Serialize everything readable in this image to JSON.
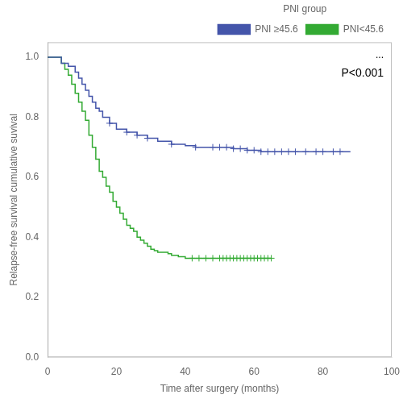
{
  "chart_data": {
    "type": "line",
    "xlabel": "Time after surgery (months)",
    "ylabel": "Relapse-free survival cumulative suvival",
    "xlim": [
      0,
      100
    ],
    "ylim": [
      0.0,
      1.05
    ],
    "xticks": [
      0,
      20,
      40,
      60,
      80,
      100
    ],
    "yticks": [
      {
        "value": 0,
        "label": "0.0"
      },
      0.2,
      0.4,
      0.6,
      0.8,
      {
        "value": 1,
        "label": "1.0"
      }
    ],
    "grid": false,
    "legend": "upper right",
    "legend_title": "PNI group",
    "annotations": [
      "...",
      "P<0.001"
    ],
    "series": [
      {
        "name": "PNI ≥45.6",
        "color": "#4455aa",
        "x": [
          0,
          2,
          4,
          6,
          8,
          9,
          10,
          11,
          12,
          13,
          14,
          15,
          16,
          18,
          20,
          23,
          26,
          29,
          32,
          36,
          40,
          43,
          46,
          48,
          50,
          52,
          54,
          56,
          58,
          60,
          62,
          64,
          66,
          68,
          70,
          72,
          75,
          78,
          80,
          83,
          85,
          88
        ],
        "values": [
          1.0,
          1.0,
          0.98,
          0.97,
          0.95,
          0.93,
          0.91,
          0.89,
          0.87,
          0.85,
          0.83,
          0.82,
          0.8,
          0.78,
          0.76,
          0.75,
          0.74,
          0.73,
          0.72,
          0.71,
          0.705,
          0.7,
          0.7,
          0.7,
          0.7,
          0.7,
          0.695,
          0.695,
          0.69,
          0.69,
          0.685,
          0.685,
          0.685,
          0.685,
          0.685,
          0.685,
          0.685,
          0.685,
          0.685,
          0.685,
          0.685,
          0.685
        ],
        "censored_x": [
          18,
          23,
          26,
          29,
          36,
          43,
          48,
          50,
          52,
          54,
          56,
          58,
          60,
          62,
          64,
          66,
          68,
          70,
          72,
          75,
          78,
          80,
          83,
          85
        ],
        "censored_y": [
          0.78,
          0.75,
          0.74,
          0.73,
          0.71,
          0.7,
          0.7,
          0.7,
          0.7,
          0.695,
          0.695,
          0.69,
          0.69,
          0.685,
          0.685,
          0.685,
          0.685,
          0.685,
          0.685,
          0.685,
          0.685,
          0.685,
          0.685,
          0.685
        ]
      },
      {
        "name": "PNI<45.6",
        "color": "#33aa33",
        "x": [
          0,
          2,
          4,
          5,
          6,
          7,
          8,
          9,
          10,
          11,
          12,
          13,
          14,
          15,
          16,
          17,
          18,
          19,
          20,
          21,
          22,
          23,
          24,
          25,
          26,
          27,
          28,
          29,
          30,
          31,
          32,
          33,
          34,
          35,
          36,
          37,
          38,
          40,
          42,
          44,
          46,
          48,
          50,
          52,
          54,
          56,
          58,
          60,
          62,
          64,
          65
        ],
        "values": [
          1.0,
          1.0,
          0.98,
          0.96,
          0.94,
          0.91,
          0.88,
          0.85,
          0.82,
          0.79,
          0.74,
          0.7,
          0.66,
          0.62,
          0.6,
          0.57,
          0.55,
          0.52,
          0.5,
          0.48,
          0.46,
          0.44,
          0.43,
          0.42,
          0.4,
          0.39,
          0.38,
          0.37,
          0.36,
          0.355,
          0.35,
          0.35,
          0.35,
          0.345,
          0.34,
          0.34,
          0.335,
          0.33,
          0.33,
          0.33,
          0.33,
          0.33,
          0.33,
          0.33,
          0.33,
          0.33,
          0.33,
          0.33,
          0.33,
          0.33,
          0.33
        ],
        "censored_x": [
          42,
          44,
          46,
          48,
          50,
          51,
          52,
          53,
          54,
          55,
          56,
          57,
          58,
          59,
          60,
          61,
          62,
          63,
          64,
          65
        ],
        "censored_y": [
          0.33,
          0.33,
          0.33,
          0.33,
          0.33,
          0.33,
          0.33,
          0.33,
          0.33,
          0.33,
          0.33,
          0.33,
          0.33,
          0.33,
          0.33,
          0.33,
          0.33,
          0.33,
          0.33,
          0.33
        ]
      }
    ]
  }
}
